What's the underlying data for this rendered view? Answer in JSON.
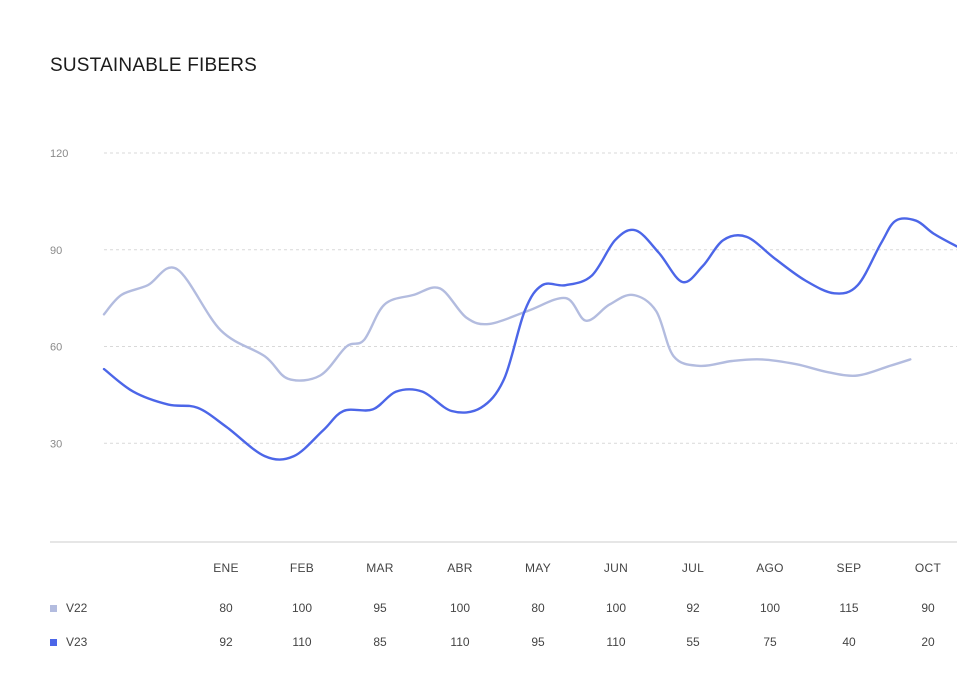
{
  "chart_data": {
    "type": "line",
    "title": "SUSTAINABLE FIBERS",
    "y_ticks": [
      "120",
      "90",
      "60",
      "30"
    ],
    "ylim": [
      0,
      120
    ],
    "grid": true,
    "categories": [
      "ENE",
      "FEB",
      "MAR",
      "ABR",
      "MAY",
      "JUN",
      "JUL",
      "AGO",
      "SEP",
      "OCT"
    ],
    "line_series": [
      {
        "name": "V22",
        "color": "#b3bcdf",
        "points": [
          [
            0,
            70
          ],
          [
            0.6,
            76
          ],
          [
            1.5,
            79
          ],
          [
            2.5,
            84
          ],
          [
            4,
            65
          ],
          [
            5.5,
            57
          ],
          [
            6.3,
            50
          ],
          [
            7.4,
            51
          ],
          [
            8.3,
            60
          ],
          [
            8.9,
            62
          ],
          [
            9.6,
            73
          ],
          [
            10.6,
            76
          ],
          [
            11.5,
            78
          ],
          [
            12.4,
            69
          ],
          [
            13.2,
            67
          ],
          [
            14.5,
            71
          ],
          [
            15.8,
            75
          ],
          [
            16.5,
            68
          ],
          [
            17.3,
            73
          ],
          [
            18.1,
            76
          ],
          [
            18.9,
            71
          ],
          [
            19.5,
            57
          ],
          [
            20.4,
            54
          ],
          [
            21.5,
            55.5
          ],
          [
            22.5,
            56
          ],
          [
            23.7,
            54.5
          ],
          [
            24.8,
            52
          ],
          [
            25.8,
            51
          ],
          [
            26.9,
            54
          ],
          [
            27.6,
            56
          ]
        ]
      },
      {
        "name": "V23",
        "color": "#4c66e8",
        "points": [
          [
            0,
            53
          ],
          [
            1,
            46
          ],
          [
            2.2,
            42
          ],
          [
            3.2,
            41
          ],
          [
            4.2,
            35
          ],
          [
            5.5,
            26
          ],
          [
            6.5,
            26
          ],
          [
            7.5,
            34
          ],
          [
            8.2,
            40
          ],
          [
            9.2,
            40.5
          ],
          [
            10,
            46
          ],
          [
            10.9,
            46
          ],
          [
            11.9,
            40
          ],
          [
            12.9,
            41
          ],
          [
            13.7,
            50
          ],
          [
            14.4,
            71
          ],
          [
            15,
            79
          ],
          [
            15.8,
            79
          ],
          [
            16.7,
            82
          ],
          [
            17.5,
            93
          ],
          [
            18.2,
            96
          ],
          [
            19,
            89
          ],
          [
            19.8,
            80
          ],
          [
            20.5,
            85
          ],
          [
            21.2,
            93
          ],
          [
            22,
            94
          ],
          [
            23,
            87
          ],
          [
            24,
            80.5
          ],
          [
            25,
            76.5
          ],
          [
            25.8,
            79
          ],
          [
            26.6,
            92
          ],
          [
            27.1,
            99
          ],
          [
            27.8,
            99
          ],
          [
            28.4,
            95
          ],
          [
            29.2,
            91
          ]
        ]
      }
    ],
    "table": {
      "rows": [
        {
          "name": "V22",
          "color": "#b3bcdf",
          "values": [
            "80",
            "100",
            "95",
            "100",
            "80",
            "100",
            "92",
            "100",
            "115",
            "90"
          ]
        },
        {
          "name": "V23",
          "color": "#4c66e8",
          "values": [
            "92",
            "110",
            "85",
            "110",
            "95",
            "110",
            "55",
            "75",
            "40",
            "20"
          ]
        }
      ]
    }
  }
}
